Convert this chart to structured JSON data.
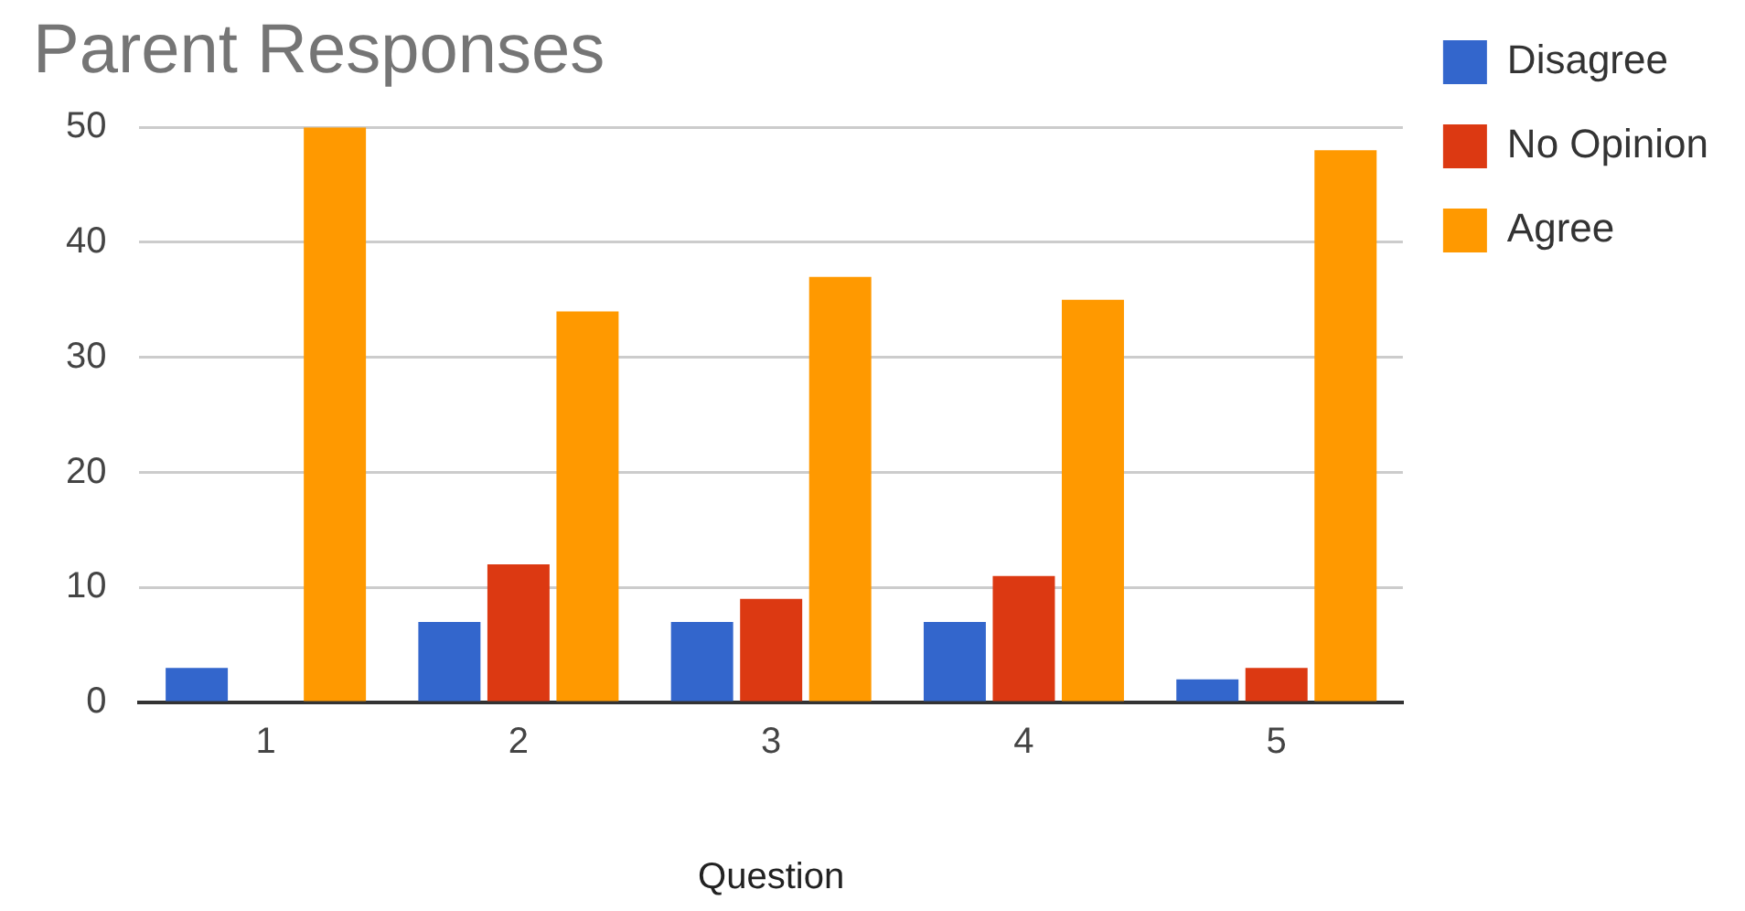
{
  "chart_data": {
    "type": "bar",
    "title": "Parent Responses",
    "xlabel": "Question",
    "categories": [
      "1",
      "2",
      "3",
      "4",
      "5"
    ],
    "series": [
      {
        "name": "Disagree",
        "color": "#3366cc",
        "values": [
          3,
          7,
          7,
          7,
          2
        ]
      },
      {
        "name": "No Opinion",
        "color": "#dc3912",
        "values": [
          0,
          12,
          9,
          11,
          3
        ]
      },
      {
        "name": "Agree",
        "color": "#ff9900",
        "values": [
          50,
          34,
          37,
          35,
          48
        ]
      }
    ],
    "ylim": [
      0,
      50
    ],
    "yticks": [
      0,
      10,
      20,
      30,
      40,
      50
    ],
    "grid": "y",
    "legend": "top right"
  }
}
